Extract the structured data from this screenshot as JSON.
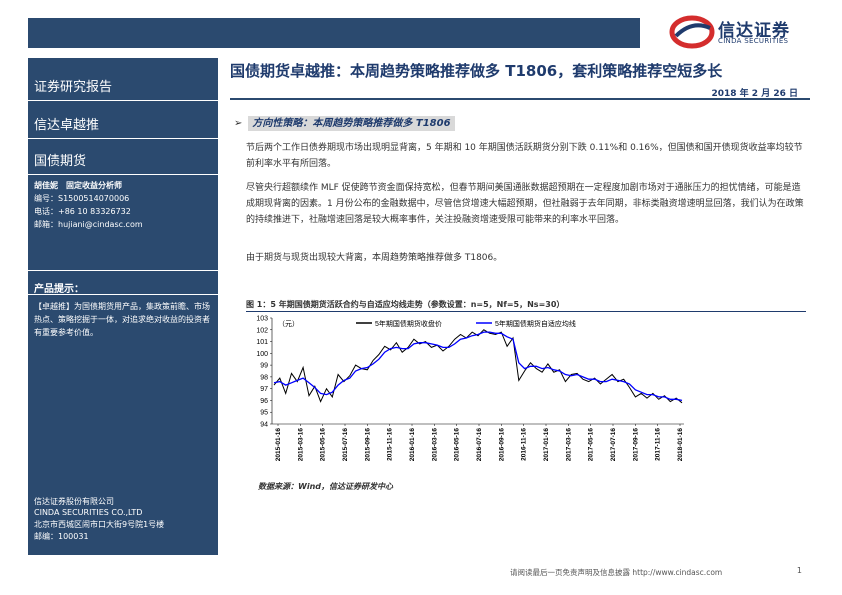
{
  "header": {
    "brand": "信达证券",
    "brand_en": "CINDA SECURITIES",
    "colors": {
      "primary": "#2b4a6f",
      "logo_red": "#d42d2d"
    }
  },
  "sidebar": {
    "report_type": "证券研究报告",
    "series": "信达卓越推",
    "category": "国债期货",
    "analyst": {
      "name_title": "胡佳妮　固定收益分析师",
      "id": "编号：S1500514070006",
      "phone": "电话：+86 10 83326732",
      "email": "邮箱：hujiani@cindasc.com"
    },
    "product_tip_title": "产品提示：",
    "product_tip_text": "【卓越推】为国债期货用产品，集政策前瞻、市场热点、策略挖掘于一体，对追求绝对收益的投资者有重要参考价值。",
    "company_cn": "信达证券股份有限公司",
    "company_en": "CINDA SECURITIES CO.,LTD",
    "address": "北京市西城区闹市口大街9号院1号楼",
    "postcode": "邮编：100031"
  },
  "main": {
    "title": "国债期货卓越推：本周趋势策略推荐做多 T1806，套利策略推荐空短多长",
    "date": "2018 年 2 月 26 日",
    "section_arrow": "➢",
    "section_label": "方向性策略：本周趋势策略推荐做多 T1806",
    "para1": "节后两个工作日债券期现市场出现明显背离，5 年期和 10 年期国债活跃期货分别下跌 0.11%和 0.16%，但国债和国开债现货收益率均较节前利率水平有所回落。",
    "para2": "尽管央行超额续作 MLF 促使跨节资金面保持宽松，但春节期间美国通胀数据超预期在一定程度加剧市场对于通胀压力的担忧情绪，可能是造成期现背离的因素。1 月份公布的金融数据中，尽管信贷增速大幅超预期，但社融弱于去年同期，非标类融资增速明显回落，我们认为在政策的持续推进下，社融增速回落是较大概率事件，关注投融资增速受限可能带来的利率水平回落。",
    "para3": "由于期货与现货出现较大背离，本周趋势策略推荐做多 T1806。",
    "figure_title": "图 1：5 年期国债期货活跃合约与自适应均线走势（参数设置：n=5，Nf=5，Ns=30）",
    "source": "数据来源：Wind，信达证券研发中心"
  },
  "footer": {
    "disclaimer": "请阅读最后一页免责声明及信息披露 http://www.cindasc.com",
    "page": "1"
  },
  "chart_data": {
    "type": "line",
    "unit_label": "（元）",
    "ylim": [
      94,
      103
    ],
    "y_ticks": [
      94,
      95,
      96,
      97,
      98,
      99,
      100,
      101,
      102,
      103
    ],
    "x_ticks": [
      "2015-01-16",
      "2015-03-16",
      "2015-05-16",
      "2015-07-16",
      "2015-09-16",
      "2015-11-16",
      "2016-01-16",
      "2016-03-16",
      "2016-05-16",
      "2016-07-16",
      "2016-09-16",
      "2016-11-16",
      "2017-01-16",
      "2017-03-16",
      "2017-05-16",
      "2017-07-16",
      "2017-09-16",
      "2017-11-16",
      "2018-01-16"
    ],
    "legend_position": "top",
    "series": [
      {
        "name": "5年期国债期货收盘价",
        "color": "#000000",
        "values": [
          97.3,
          97.9,
          96.6,
          98.3,
          97.6,
          98.8,
          96.4,
          97.2,
          95.9,
          97.0,
          96.3,
          98.2,
          97.6,
          98.1,
          99.0,
          98.7,
          98.6,
          99.4,
          99.9,
          100.6,
          100.3,
          100.9,
          100.1,
          100.5,
          101.2,
          100.8,
          101.0,
          100.5,
          100.7,
          100.2,
          100.6,
          101.2,
          101.6,
          101.3,
          101.8,
          101.5,
          102.0,
          101.7,
          101.6,
          101.8,
          100.6,
          101.3,
          97.7,
          98.5,
          99.2,
          98.7,
          98.4,
          99.1,
          98.4,
          98.6,
          97.6,
          98.2,
          98.3,
          97.8,
          97.6,
          97.9,
          97.4,
          97.8,
          98.2,
          97.6,
          97.8,
          97.1,
          96.3,
          96.6,
          96.2,
          96.6,
          96.1,
          96.4,
          95.9,
          96.2,
          95.8
        ]
      },
      {
        "name": "5年期国债期货自适应均线",
        "color": "#0000ff",
        "values": [
          97.5,
          97.6,
          97.3,
          97.5,
          97.7,
          97.9,
          97.5,
          97.1,
          96.6,
          96.5,
          96.7,
          97.3,
          97.7,
          97.9,
          98.5,
          98.7,
          98.8,
          99.1,
          99.5,
          100.1,
          100.4,
          100.5,
          100.4,
          100.4,
          100.8,
          100.9,
          100.9,
          100.8,
          100.7,
          100.5,
          100.5,
          100.8,
          101.2,
          101.3,
          101.5,
          101.6,
          101.8,
          101.8,
          101.7,
          101.7,
          101.4,
          101.2,
          99.2,
          98.7,
          98.9,
          98.9,
          98.7,
          98.8,
          98.6,
          98.5,
          98.2,
          98.1,
          98.2,
          98.0,
          97.8,
          97.8,
          97.6,
          97.6,
          97.8,
          97.7,
          97.6,
          97.4,
          96.9,
          96.7,
          96.5,
          96.5,
          96.3,
          96.3,
          96.1,
          96.1,
          96.0
        ]
      }
    ]
  }
}
